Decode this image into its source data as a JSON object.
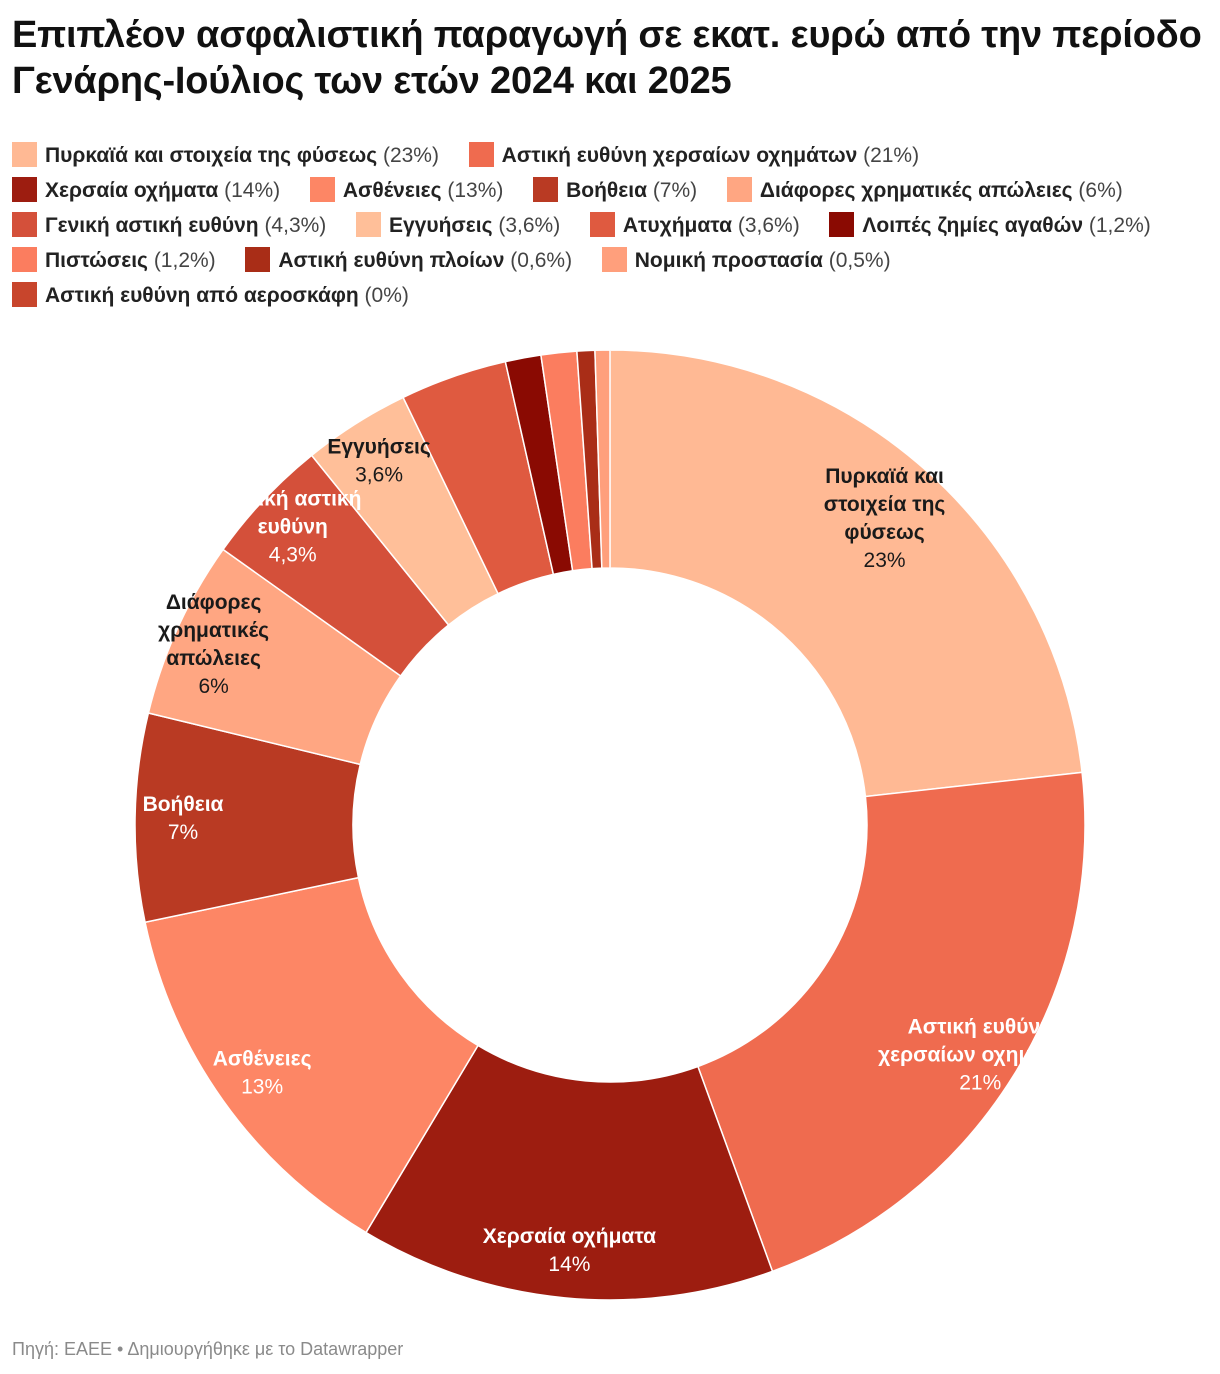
{
  "title": "Επιπλέον ασφαλιστική παραγωγή σε εκατ. ευρώ από την περίοδο Γενάρης-Ιούλιος  των ετών 2024 και 2025",
  "footer": "Πηγή: ΕΑΕΕ • Δημιουργήθηκε με το Datawrapper",
  "chart_data": {
    "type": "pie",
    "donut": true,
    "title": "Επιπλέον ασφαλιστική παραγωγή σε εκατ. ευρώ από την περίοδο Γενάρης-Ιούλιος  των ετών 2024 και 2025",
    "legend_position": "top",
    "slices": [
      {
        "label": "Πυρκαϊά και στοιχεία της φύσεως",
        "value": 23,
        "pct": "23%",
        "color": "#ffb994",
        "text_color": "#1a1a1a",
        "chart_label": [
          "Πυρκαϊά και",
          "στοιχεία της",
          "φύσεως"
        ]
      },
      {
        "label": "Αστική ευθύνη χερσαίων οχημάτων",
        "value": 21,
        "pct": "21%",
        "color": "#ef6b4f",
        "text_color": "#ffffff",
        "chart_label": [
          "Αστική ευθύνη",
          "χερσαίων οχημάτων"
        ]
      },
      {
        "label": "Χερσαία οχήματα",
        "value": 14,
        "pct": "14%",
        "color": "#9d1d10",
        "text_color": "#ffffff",
        "chart_label": [
          "Χερσαία οχήματα"
        ]
      },
      {
        "label": "Ασθένειες",
        "value": 13,
        "pct": "13%",
        "color": "#fd8665",
        "text_color": "#ffffff",
        "chart_label": [
          "Ασθένειες"
        ]
      },
      {
        "label": "Βοήθεια",
        "value": 7,
        "pct": "7%",
        "color": "#b93a23",
        "text_color": "#ffffff",
        "chart_label": [
          "Βοήθεια"
        ]
      },
      {
        "label": "Διάφορες χρηματικές απώλειες",
        "value": 6,
        "pct": "6%",
        "color": "#ffa682",
        "text_color": "#1a1a1a",
        "chart_label": [
          "Διάφορες",
          "χρηματικές",
          "απώλειες"
        ]
      },
      {
        "label": "Γενική αστική ευθύνη",
        "value": 4.3,
        "pct": "4,3%",
        "color": "#d4503a",
        "text_color": "#ffffff",
        "chart_label": [
          "Γενική αστική",
          "ευθύνη"
        ]
      },
      {
        "label": "Εγγυήσεις",
        "value": 3.6,
        "pct": "3,6%",
        "color": "#ffbf99",
        "text_color": "#1a1a1a",
        "chart_label": [
          "Εγγυήσεις"
        ]
      },
      {
        "label": "Ατυχήματα",
        "value": 3.6,
        "pct": "3,6%",
        "color": "#df5a40",
        "text_color": "#ffffff",
        "chart_label": []
      },
      {
        "label": "Λοιπές ζημίες αγαθών",
        "value": 1.2,
        "pct": "1,2%",
        "color": "#8a0a02",
        "text_color": "#ffffff",
        "chart_label": []
      },
      {
        "label": "Πιστώσεις",
        "value": 1.2,
        "pct": "1,2%",
        "color": "#fb7d5f",
        "text_color": "#ffffff",
        "chart_label": []
      },
      {
        "label": "Αστική ευθύνη πλοίων",
        "value": 0.6,
        "pct": "0,6%",
        "color": "#a92d17",
        "text_color": "#ffffff",
        "chart_label": []
      },
      {
        "label": "Νομική προστασία",
        "value": 0.5,
        "pct": "0,5%",
        "color": "#ff9f7c",
        "text_color": "#1a1a1a",
        "chart_label": []
      },
      {
        "label": "Αστική ευθύνη από αεροσκάφη",
        "value": 0,
        "pct": "0%",
        "color": "#c8452c",
        "text_color": "#ffffff",
        "chart_label": []
      }
    ]
  }
}
